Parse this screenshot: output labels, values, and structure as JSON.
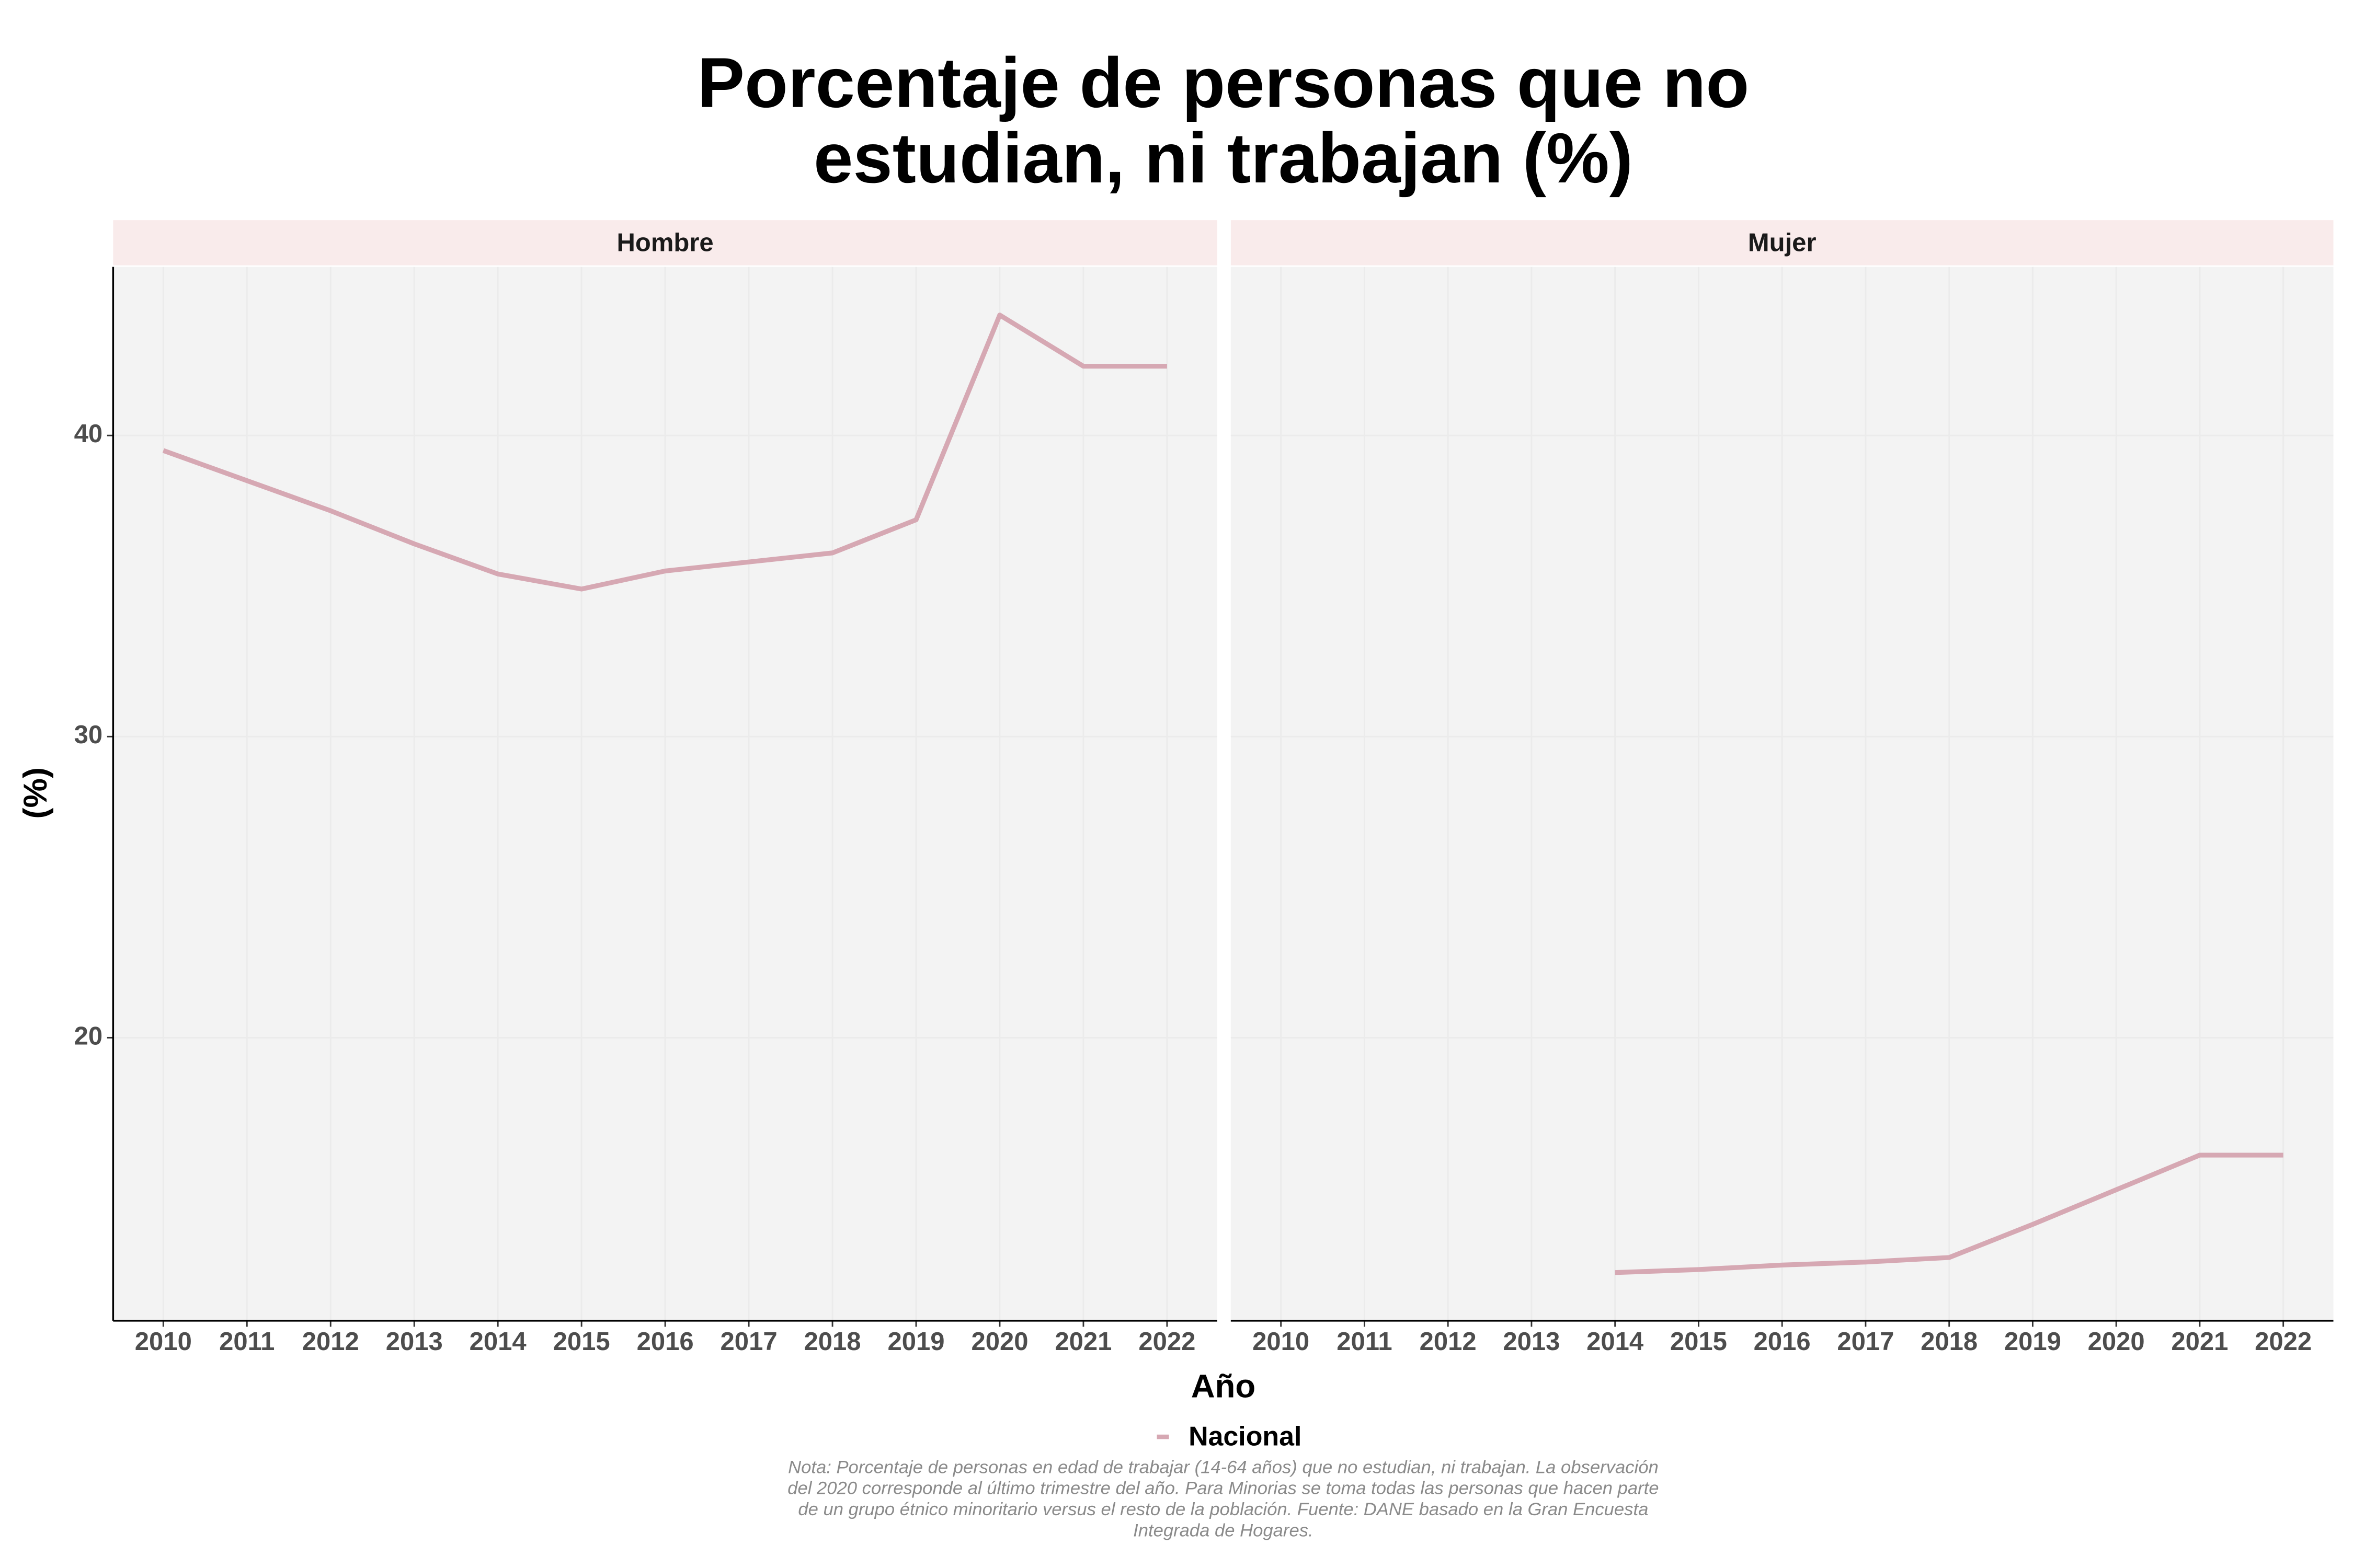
{
  "chart_data": {
    "type": "line",
    "title": "Porcentaje de personas que no estudian, ni trabajan (%)",
    "y_label": "(%)",
    "x_label": "Año",
    "legend": "Nacional",
    "color": "#d6a8b3",
    "note": "Nota: Porcentaje de personas en edad de trabajar (14-64 años) que no estudian, ni trabajan. La observación del 2020 corresponde al último trimestre del año. Para Minorias se toma todas las personas que hacen parte de un grupo étnico minoritario versus el resto de la población. Fuente: DANE basado en la Gran Encuesta Integrada de Hogares.",
    "x": [
      2010,
      2011,
      2012,
      2013,
      2014,
      2015,
      2016,
      2017,
      2018,
      2019,
      2020,
      2021,
      2022
    ],
    "xlim": [
      2009.4,
      2022.6
    ],
    "ylim": [
      10.6,
      45.6
    ],
    "yticks": [
      20,
      30,
      40
    ],
    "grid": true,
    "facets": [
      {
        "label": "Hombre",
        "values": [
          39.5,
          38.5,
          37.5,
          36.4,
          35.4,
          34.9,
          35.5,
          35.8,
          36.1,
          37.2,
          44.0,
          42.3,
          42.3
        ]
      },
      {
        "label": "Mujer",
        "values": [
          null,
          null,
          null,
          null,
          12.2,
          12.3,
          12.45,
          12.55,
          12.7,
          13.8,
          14.95,
          16.1,
          16.1
        ]
      }
    ]
  }
}
